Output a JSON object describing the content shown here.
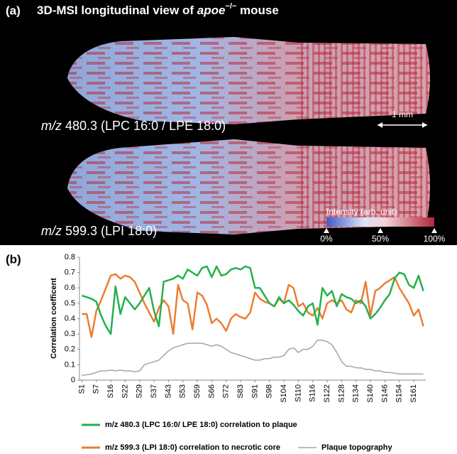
{
  "panel_a": {
    "label": "(a)",
    "title_start": "3D-MSI longitudinal view of ",
    "title_gene": "apoe",
    "title_sup": "−/−",
    "title_end": " mouse",
    "image_1_mz": "m/z",
    "image_1_caption": " 480.3 (LPC 16:0 / LPE 18:0)",
    "image_2_mz": "m/z",
    "image_2_caption": " 599.3 (LPI 18:0)",
    "scale_bar": "1 mm",
    "colorbar_title": "Intensity (arb. unit)",
    "colorbar_labels": [
      "0%",
      "50%",
      "100%"
    ]
  },
  "panel_b": {
    "label": "(b)"
  },
  "chart_data": {
    "type": "line",
    "y_label": "Correlation coefficent",
    "categories": [
      "S1",
      null,
      null,
      "S7",
      null,
      null,
      "S16",
      null,
      null,
      "S22",
      null,
      null,
      "S29",
      null,
      null,
      "S37",
      null,
      null,
      "S43",
      null,
      null,
      "S53",
      null,
      null,
      "S59",
      null,
      null,
      "S66",
      null,
      null,
      "S72",
      null,
      null,
      "S83",
      null,
      null,
      "S91",
      null,
      null,
      "S98",
      null,
      null,
      "S104",
      null,
      null,
      "S110",
      null,
      null,
      "S116",
      null,
      null,
      "S122",
      null,
      null,
      "S128",
      null,
      null,
      "S134",
      null,
      null,
      "S140",
      null,
      null,
      "S146",
      null,
      null,
      "S154",
      null,
      null,
      "S161",
      null,
      null
    ],
    "ylim": [
      0,
      0.8
    ],
    "yticks": [
      0,
      0.1,
      0.2,
      0.3,
      0.4,
      0.5,
      0.6,
      0.7,
      0.8
    ],
    "grid": false,
    "series": [
      {
        "name": "m/z 480.3 (LPC 16:0/ LPE 18:0) correlation to plaque",
        "color": "#22b14c",
        "values": [
          0.55,
          0.54,
          0.53,
          0.51,
          0.42,
          0.35,
          0.3,
          0.61,
          0.43,
          0.54,
          0.5,
          0.46,
          0.5,
          0.55,
          0.6,
          0.45,
          0.35,
          0.64,
          0.65,
          0.66,
          0.68,
          0.66,
          0.72,
          0.7,
          0.68,
          0.73,
          0.74,
          0.67,
          0.74,
          0.68,
          0.69,
          0.72,
          0.73,
          0.72,
          0.74,
          0.73,
          0.6,
          0.6,
          0.55,
          0.5,
          0.48,
          0.54,
          0.5,
          0.52,
          0.49,
          0.45,
          0.42,
          0.48,
          0.5,
          0.36,
          0.6,
          0.55,
          0.58,
          0.48,
          0.56,
          0.54,
          0.53,
          0.5,
          0.52,
          0.48,
          0.4,
          0.43,
          0.47,
          0.52,
          0.56,
          0.66,
          0.7,
          0.69,
          0.62,
          0.6,
          0.68,
          0.58
        ]
      },
      {
        "name": "m/z 599.3 (LPI 18:0) correlation to necrotic core",
        "color": "#ed7d31",
        "values": [
          0.43,
          0.43,
          0.28,
          0.45,
          0.52,
          0.6,
          0.68,
          0.69,
          0.66,
          0.68,
          0.67,
          0.64,
          0.57,
          0.5,
          0.44,
          0.38,
          0.47,
          0.52,
          0.48,
          0.3,
          0.62,
          0.52,
          0.5,
          0.33,
          0.57,
          0.55,
          0.49,
          0.37,
          0.4,
          0.37,
          0.32,
          0.4,
          0.43,
          0.41,
          0.4,
          0.44,
          0.57,
          0.53,
          0.51,
          0.5,
          0.48,
          0.53,
          0.5,
          0.62,
          0.6,
          0.48,
          0.5,
          0.44,
          0.42,
          0.47,
          0.4,
          0.5,
          0.52,
          0.5,
          0.52,
          0.46,
          0.44,
          0.52,
          0.5,
          0.64,
          0.42,
          0.58,
          0.6,
          0.63,
          0.65,
          0.67,
          0.6,
          0.55,
          0.5,
          0.42,
          0.46,
          0.35
        ]
      },
      {
        "name": "Plaque topography",
        "color": "#a5a5a5",
        "values": [
          0.03,
          0.035,
          0.04,
          0.05,
          0.06,
          0.06,
          0.065,
          0.06,
          0.065,
          0.06,
          0.06,
          0.055,
          0.06,
          0.1,
          0.11,
          0.12,
          0.13,
          0.16,
          0.19,
          0.21,
          0.22,
          0.23,
          0.24,
          0.24,
          0.24,
          0.24,
          0.23,
          0.22,
          0.23,
          0.22,
          0.2,
          0.18,
          0.17,
          0.16,
          0.15,
          0.14,
          0.13,
          0.13,
          0.14,
          0.14,
          0.15,
          0.15,
          0.16,
          0.2,
          0.21,
          0.18,
          0.2,
          0.2,
          0.22,
          0.26,
          0.26,
          0.25,
          0.23,
          0.18,
          0.12,
          0.09,
          0.09,
          0.08,
          0.08,
          0.07,
          0.07,
          0.06,
          0.06,
          0.05,
          0.05,
          0.045,
          0.04,
          0.04,
          0.04,
          0.04,
          0.04,
          0.04
        ]
      }
    ]
  }
}
